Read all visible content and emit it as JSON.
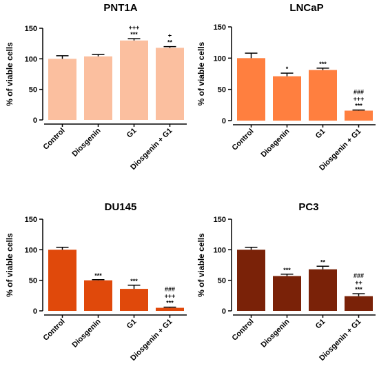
{
  "chart_data": [
    {
      "type": "bar",
      "title": "PNT1A",
      "ylabel": "% of viable cells",
      "categories": [
        "Control",
        "Diosgenin",
        "G1",
        "Diosgenin + G1"
      ],
      "values": [
        100,
        104,
        130,
        118
      ],
      "errors": [
        5,
        3,
        3,
        2
      ],
      "significance": [
        [],
        [],
        [
          "+++",
          "***"
        ],
        [
          "+",
          "**"
        ]
      ],
      "ylim": [
        0,
        150
      ],
      "yticks": [
        "0",
        "50",
        "100",
        "150"
      ],
      "color": "#FBBF9F"
    },
    {
      "type": "bar",
      "title": "LNCaP",
      "ylabel": "% of viable cells",
      "categories": [
        "Control",
        "Diosgenin",
        "G1",
        "Diosgenin + G1"
      ],
      "values": [
        100,
        71,
        81,
        16
      ],
      "errors": [
        8,
        5,
        3,
        1
      ],
      "significance": [
        [],
        [
          "*"
        ],
        [
          "***"
        ],
        [
          "###",
          "+++",
          "***"
        ]
      ],
      "ylim": [
        0,
        150
      ],
      "yticks": [
        "0",
        "50",
        "100",
        "150"
      ],
      "color": "#FF7F3F"
    },
    {
      "type": "bar",
      "title": "DU145",
      "ylabel": "% of viable cells",
      "categories": [
        "Control",
        "Diosgenin",
        "G1",
        "Diosgenin + G1"
      ],
      "values": [
        100,
        50,
        36,
        5
      ],
      "errors": [
        4,
        1,
        6,
        1
      ],
      "significance": [
        [],
        [
          "***"
        ],
        [
          "***"
        ],
        [
          "###",
          "+++",
          "***"
        ]
      ],
      "ylim": [
        0,
        150
      ],
      "yticks": [
        "0",
        "50",
        "100",
        "150"
      ],
      "color": "#E0490B"
    },
    {
      "type": "bar",
      "title": "PC3",
      "ylabel": "% of viable cells",
      "categories": [
        "Control",
        "Diosgenin",
        "G1",
        "Diosgenin + G1"
      ],
      "values": [
        100,
        57,
        68,
        24
      ],
      "errors": [
        4,
        3,
        5,
        4
      ],
      "significance": [
        [],
        [
          "***"
        ],
        [
          "**"
        ],
        [
          "###",
          "++",
          "***"
        ]
      ],
      "ylim": [
        0,
        150
      ],
      "yticks": [
        "0",
        "50",
        "100",
        "150"
      ],
      "color": "#7A2208"
    }
  ]
}
